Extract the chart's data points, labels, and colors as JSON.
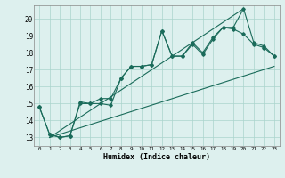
{
  "xlabel": "Humidex (Indice chaleur)",
  "ylabel": "",
  "bg_color": "#ddf0ee",
  "grid_color": "#aad4cc",
  "line_color": "#1a6b5a",
  "xlim": [
    -0.5,
    23.5
  ],
  "ylim": [
    12.5,
    20.8
  ],
  "xticks": [
    0,
    1,
    2,
    3,
    4,
    5,
    6,
    7,
    8,
    9,
    10,
    11,
    12,
    13,
    14,
    15,
    16,
    17,
    18,
    19,
    20,
    21,
    22,
    23
  ],
  "yticks": [
    13,
    14,
    15,
    16,
    17,
    18,
    19,
    20
  ],
  "series1_x": [
    0,
    1,
    2,
    3,
    4,
    5,
    6,
    7,
    8,
    9,
    10,
    11,
    12,
    13,
    14,
    15,
    16,
    17,
    18,
    19,
    20,
    21,
    22,
    23
  ],
  "series1_y": [
    14.8,
    13.2,
    13.0,
    13.1,
    15.1,
    15.0,
    15.0,
    14.9,
    16.5,
    17.2,
    17.2,
    17.3,
    19.3,
    17.8,
    17.8,
    18.5,
    17.9,
    18.8,
    19.5,
    19.4,
    19.1,
    18.5,
    18.3,
    17.8
  ],
  "series2_x": [
    0,
    1,
    2,
    3,
    4,
    5,
    6,
    7,
    8,
    9,
    10,
    11,
    12,
    13,
    14,
    15,
    16,
    17,
    18,
    19,
    20,
    21,
    22,
    23
  ],
  "series2_y": [
    14.8,
    13.2,
    13.0,
    13.1,
    15.0,
    15.0,
    15.3,
    15.3,
    16.5,
    17.2,
    17.2,
    17.3,
    19.3,
    17.8,
    17.8,
    18.6,
    18.0,
    18.9,
    19.5,
    19.5,
    20.6,
    18.6,
    18.4,
    17.8
  ],
  "series3_x": [
    1,
    23
  ],
  "series3_y": [
    13.0,
    17.2
  ],
  "series4_x": [
    1,
    20
  ],
  "series4_y": [
    13.0,
    20.6
  ]
}
